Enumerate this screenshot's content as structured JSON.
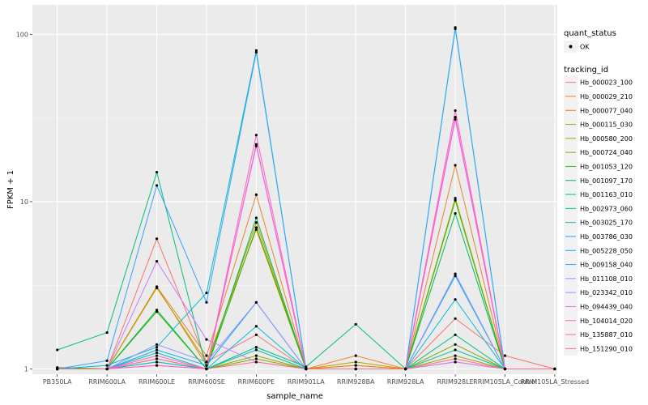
{
  "chart_data": {
    "type": "line",
    "title": "",
    "xlabel": "sample_name",
    "ylabel": "FPKM + 1",
    "y_scale": "log10",
    "ylim": [
      0.93,
      150
    ],
    "y_ticks": [
      1,
      10,
      100
    ],
    "y_tick_labels": [
      "1",
      "10",
      "100"
    ],
    "grid": true,
    "legend_placement": "right",
    "categories": [
      "PB350LA",
      "RRIM600LA",
      "RRIM600LE",
      "RRIM600SE",
      "RRIM600PE",
      "RRIM901LA",
      "RRIM928BA",
      "RRIM928LA",
      "RRIM928LE",
      "RRIM105LA_Control",
      "RRIM105LA_Stressed"
    ],
    "point_legend": {
      "title": "quant_status",
      "label": "OK"
    },
    "series_legend_title": "tracking_id",
    "series": [
      {
        "name": "Hb_000023_100",
        "color": "#F8766D",
        "values": [
          1,
          1,
          6,
          1.1,
          1.6,
          1,
          1.05,
          1,
          2,
          1.2,
          1
        ]
      },
      {
        "name": "Hb_000029_210",
        "color": "#EA8331",
        "values": [
          1,
          1,
          3.1,
          1.2,
          11,
          1,
          1.2,
          1,
          16.5,
          1,
          1
        ]
      },
      {
        "name": "Hb_000077_040",
        "color": "#D89000",
        "values": [
          1,
          1,
          3.05,
          1.1,
          6.8,
          1,
          1.05,
          1,
          1.1,
          1,
          1
        ]
      },
      {
        "name": "Hb_000115_030",
        "color": "#C09B00",
        "values": [
          1,
          1,
          3.1,
          1.05,
          7.5,
          1,
          1.1,
          1,
          10.5,
          1,
          1
        ]
      },
      {
        "name": "Hb_000580_200",
        "color": "#A3A500",
        "values": [
          1,
          1,
          1.15,
          1,
          1.2,
          1,
          1,
          1,
          1.2,
          1,
          1
        ]
      },
      {
        "name": "Hb_000724_040",
        "color": "#7CAE00",
        "values": [
          1,
          1,
          1.1,
          1,
          1.15,
          1,
          1,
          1,
          1.4,
          1,
          1
        ]
      },
      {
        "name": "Hb_001053_120",
        "color": "#39B600",
        "values": [
          1.02,
          1,
          2.2,
          1,
          7,
          1,
          1,
          1,
          10.2,
          1,
          1
        ]
      },
      {
        "name": "Hb_001097_170",
        "color": "#00BB4E",
        "values": [
          1,
          1,
          2.25,
          1,
          8,
          1,
          1,
          1,
          8.5,
          1,
          1
        ]
      },
      {
        "name": "Hb_001163_010",
        "color": "#00BF7D",
        "values": [
          1.3,
          1.65,
          15,
          1,
          1.35,
          1.03,
          1.85,
          1,
          1.6,
          1,
          1
        ]
      },
      {
        "name": "Hb_002973_060",
        "color": "#00C1A3",
        "values": [
          1,
          1,
          1.25,
          1,
          1.3,
          1,
          1,
          1,
          1.3,
          1,
          1
        ]
      },
      {
        "name": "Hb_003025_170",
        "color": "#00BFC4",
        "values": [
          1,
          1.05,
          1.35,
          2.85,
          80,
          1,
          1,
          1,
          108,
          1,
          1
        ]
      },
      {
        "name": "Hb_003786_030",
        "color": "#00BAE0",
        "values": [
          1,
          1,
          1.1,
          1,
          1.8,
          1,
          1,
          1,
          2.6,
          1,
          1
        ]
      },
      {
        "name": "Hb_005228_050",
        "color": "#00B0F6",
        "values": [
          1,
          1,
          1.3,
          1.05,
          2.5,
          1,
          1,
          1,
          3.6,
          1,
          1
        ]
      },
      {
        "name": "Hb_009158_040",
        "color": "#35A2FF",
        "values": [
          1,
          1.12,
          12.5,
          2.5,
          78,
          1,
          1,
          1,
          110,
          1,
          1
        ]
      },
      {
        "name": "Hb_011108_010",
        "color": "#9590FF",
        "values": [
          1,
          1,
          1.4,
          1.1,
          2.5,
          1,
          1,
          1,
          3.7,
          1,
          1
        ]
      },
      {
        "name": "Hb_023342_010",
        "color": "#C77CFF",
        "values": [
          1,
          1,
          4.4,
          1.5,
          1.1,
          1,
          1,
          1,
          1.1,
          1,
          1
        ]
      },
      {
        "name": "Hb_094439_040",
        "color": "#E76BF3",
        "values": [
          1,
          1,
          1.05,
          1,
          21.5,
          1,
          1,
          1,
          31,
          1,
          1
        ]
      },
      {
        "name": "Hb_104014_020",
        "color": "#FA62DB",
        "values": [
          1,
          1,
          1.2,
          1,
          22,
          1,
          1,
          1,
          32,
          1,
          1
        ]
      },
      {
        "name": "Hb_135887_010",
        "color": "#FF62BC",
        "values": [
          1,
          1,
          1.05,
          1,
          25,
          1,
          1,
          1,
          35,
          1,
          1
        ]
      },
      {
        "name": "Hb_151290_010",
        "color": "#FF6C91",
        "values": [
          1,
          1,
          1.15,
          1,
          1.1,
          1,
          1,
          1,
          1.15,
          1,
          1
        ]
      }
    ]
  }
}
